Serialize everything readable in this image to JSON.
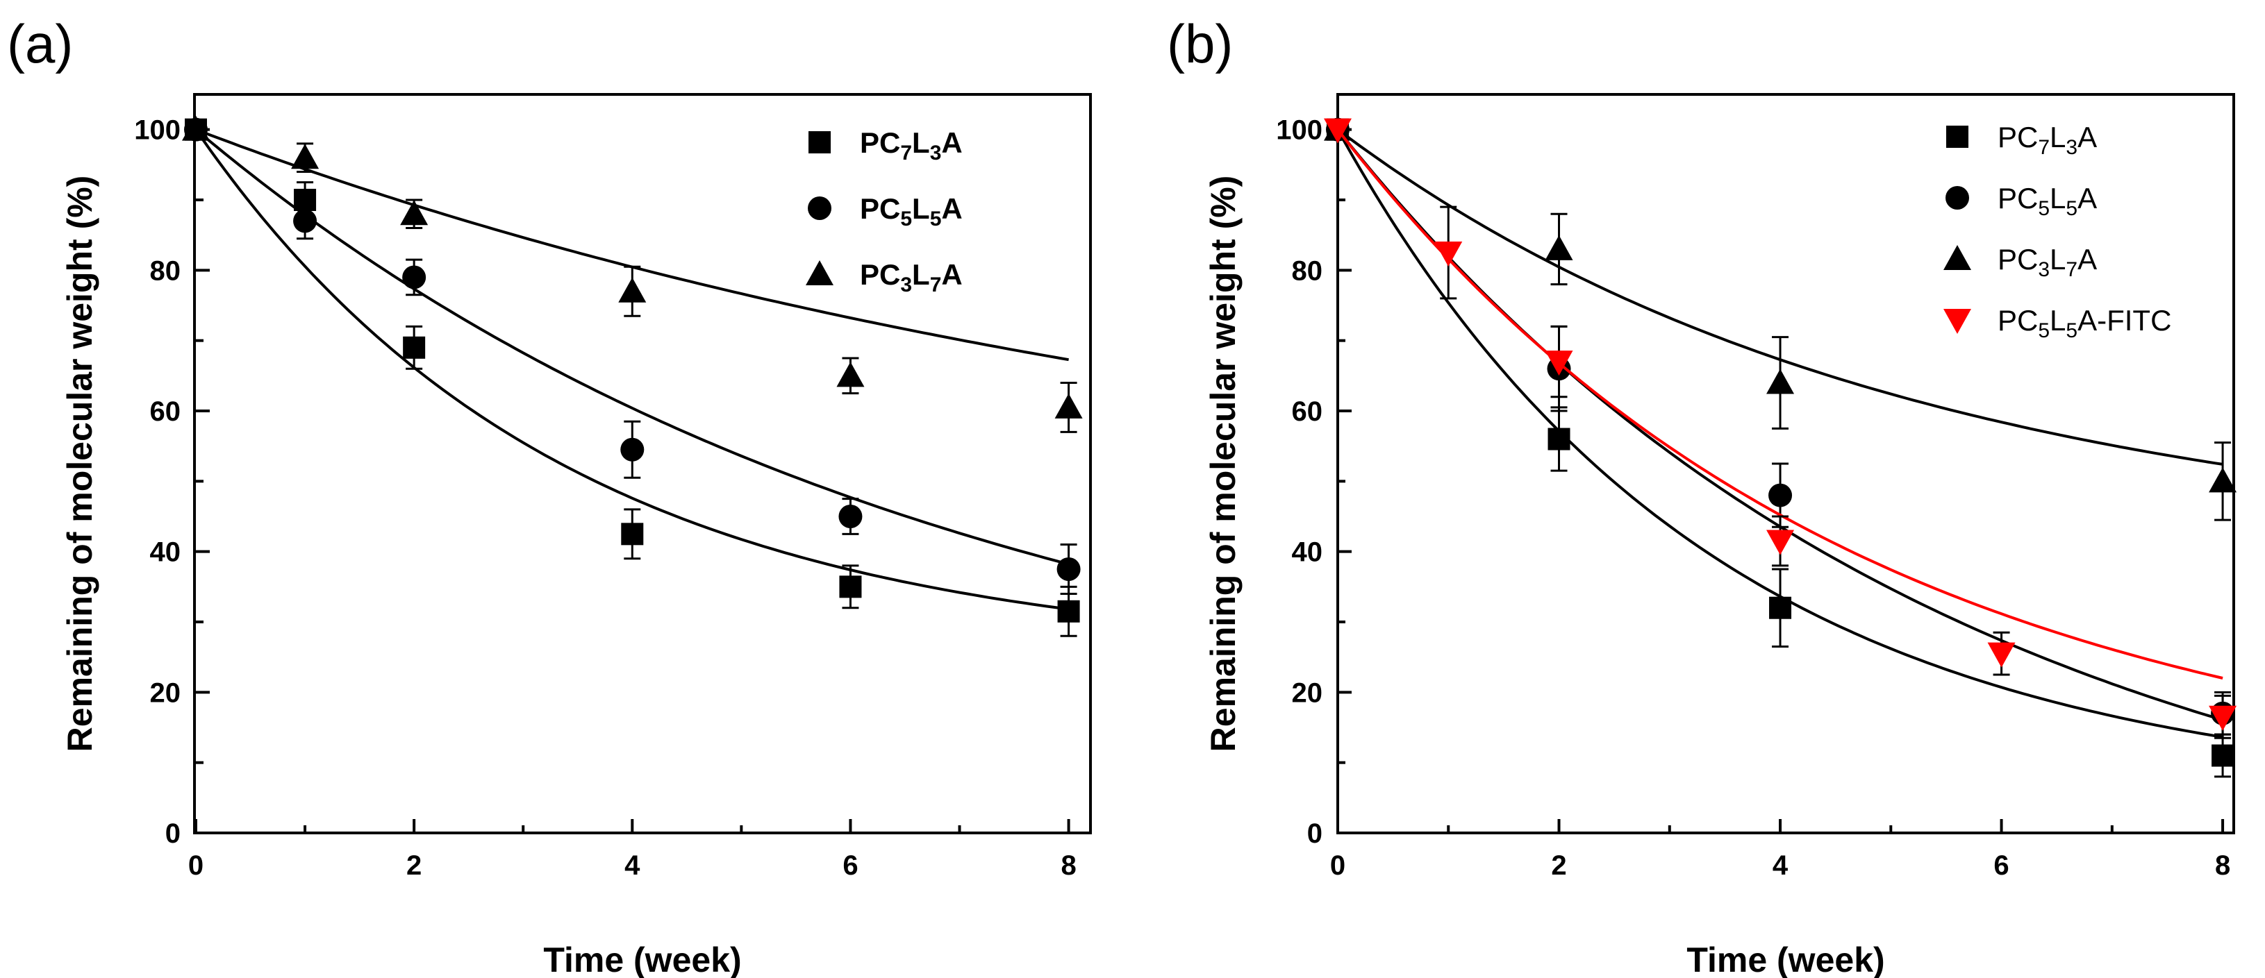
{
  "chart_data": [
    {
      "panel": "(a)",
      "type": "scatter",
      "xlabel": "Time (week)",
      "ylabel": "Remaining of molecular weight (%)",
      "xlim": [
        0,
        8.2
      ],
      "ylim": [
        0,
        105
      ],
      "xticks": [
        0,
        2,
        4,
        6,
        8
      ],
      "yticks": [
        0,
        20,
        40,
        60,
        80,
        100
      ],
      "grid": false,
      "legend": "top-right",
      "series": [
        {
          "name": "PC7L3A",
          "label": {
            "base": "PC",
            "n1": "7",
            "mid": "L",
            "n2": "3",
            "end": "A"
          },
          "marker": "square",
          "color": "#000000",
          "x": [
            0,
            1,
            2,
            4,
            6,
            8
          ],
          "y": [
            100,
            90,
            69,
            42.5,
            35,
            31.5
          ],
          "err": [
            0,
            2.5,
            3,
            3.5,
            3,
            3.5
          ],
          "fit": {
            "y0": 25,
            "a": 75,
            "k": 0.3
          }
        },
        {
          "name": "PC5L5A",
          "label": {
            "base": "PC",
            "n1": "5",
            "mid": "L",
            "n2": "5",
            "end": "A"
          },
          "marker": "circle",
          "color": "#000000",
          "x": [
            0,
            1,
            2,
            4,
            6,
            8
          ],
          "y": [
            100,
            87,
            79,
            54.5,
            45,
            37.5
          ],
          "err": [
            0,
            2.5,
            2.5,
            4,
            2.5,
            3.5
          ],
          "fit": {
            "y0": 10,
            "a": 90,
            "k": 0.145
          }
        },
        {
          "name": "PC3L7A",
          "label": {
            "base": "PC",
            "n1": "3",
            "mid": "L",
            "n2": "7",
            "end": "A"
          },
          "marker": "triangle",
          "color": "#000000",
          "x": [
            0,
            1,
            2,
            4,
            6,
            8
          ],
          "y": [
            100,
            96,
            88,
            77,
            65,
            60.5
          ],
          "err": [
            0,
            2,
            2,
            3.5,
            2.5,
            3.5
          ],
          "fit": {
            "y0": 40,
            "a": 60,
            "k": 0.0985
          }
        }
      ]
    },
    {
      "panel": "(b)",
      "type": "scatter",
      "xlabel": "Time (week)",
      "ylabel": "Remaining of molecular weight (%)",
      "xlim": [
        0,
        8.1
      ],
      "ylim": [
        0,
        105
      ],
      "xticks": [
        0,
        2,
        4,
        6,
        8
      ],
      "yticks": [
        0,
        20,
        40,
        60,
        80,
        100
      ],
      "grid": false,
      "legend": "top-right",
      "series": [
        {
          "name": "PC7L3A",
          "label": {
            "base": "PC",
            "n1": "7",
            "mid": "L",
            "n2": "3",
            "end": "A"
          },
          "marker": "square",
          "color": "#000000",
          "x": [
            0,
            2,
            4,
            8
          ],
          "y": [
            100,
            56,
            32,
            11
          ],
          "err": [
            0,
            4.5,
            5.5,
            3
          ],
          "fit": {
            "y0": 5,
            "a": 95,
            "k": 0.3
          }
        },
        {
          "name": "PC5L5A",
          "label": {
            "base": "PC",
            "n1": "5",
            "mid": "L",
            "n2": "5",
            "end": "A"
          },
          "marker": "circle",
          "color": "#000000",
          "x": [
            0,
            2,
            4,
            8
          ],
          "y": [
            100,
            66,
            48,
            17
          ],
          "err": [
            0,
            6,
            4.5,
            3
          ],
          "fit": {
            "y0": -10,
            "a": 110,
            "k": 0.18
          }
        },
        {
          "name": "PC3L7A",
          "label": {
            "base": "PC",
            "n1": "3",
            "mid": "L",
            "n2": "7",
            "end": "A"
          },
          "marker": "triangle",
          "color": "#000000",
          "x": [
            0,
            2,
            4,
            8
          ],
          "y": [
            100,
            83,
            64,
            50
          ],
          "err": [
            0,
            5,
            6.5,
            5.5
          ],
          "fit": {
            "y0": 40,
            "a": 60,
            "k": 0.197
          }
        },
        {
          "name": "PC5L5A-FITC",
          "label": {
            "base": "PC",
            "n1": "5",
            "mid": "L",
            "n2": "5",
            "end": "A-FITC"
          },
          "marker": "triangle-down",
          "color": "#ff0000",
          "x": [
            0,
            1,
            2,
            4,
            6,
            8
          ],
          "y": [
            100,
            82.5,
            67,
            41.5,
            25.5,
            16.5
          ],
          "err": [
            0,
            6.5,
            5,
            3.5,
            3,
            3
          ],
          "fit": {
            "y0": 5,
            "a": 95,
            "k": 0.215
          }
        }
      ]
    }
  ]
}
